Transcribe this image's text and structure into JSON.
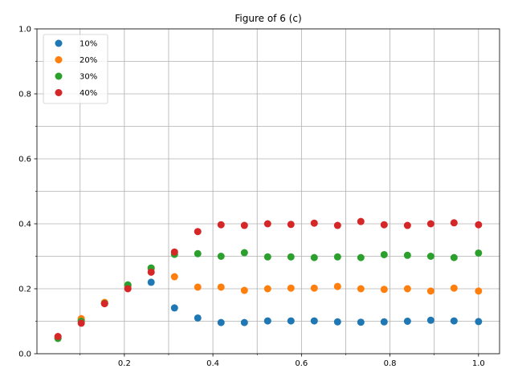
{
  "chart_data": {
    "type": "scatter",
    "title": "Figure of 6 (c)",
    "xlabel": "",
    "ylabel": "",
    "xlim": [
      0.0025,
      1.0475
    ],
    "ylim": [
      0,
      1
    ],
    "x_major_ticks": [
      0.2,
      0.4,
      0.6,
      0.8,
      1.0
    ],
    "x_major_tick_labels": [
      "0.2",
      "0.4",
      "0.6",
      "0.8",
      "1.0"
    ],
    "x_minor_ticks": [
      0.1,
      0.3,
      0.5,
      0.7,
      0.9
    ],
    "y_major_ticks": [
      0.0,
      0.2,
      0.4,
      0.6,
      0.8,
      1.0
    ],
    "y_major_tick_labels": [
      "0.0",
      "0.2",
      "0.4",
      "0.6",
      "0.8",
      "1.0"
    ],
    "y_minor_ticks": [
      0.1,
      0.3,
      0.5,
      0.7,
      0.9
    ],
    "grid": "major and minor",
    "legend_position": "top-left",
    "x": [
      0.05,
      0.1026,
      0.1553,
      0.2079,
      0.2605,
      0.3132,
      0.3658,
      0.4184,
      0.4711,
      0.5237,
      0.5763,
      0.6289,
      0.6816,
      0.7342,
      0.7868,
      0.8395,
      0.8921,
      0.9447,
      1.0
    ],
    "series": [
      {
        "name": "10%",
        "color": "#1f77b4",
        "values": [
          0.048,
          0.104,
          0.155,
          0.21,
          0.22,
          0.141,
          0.11,
          0.096,
          0.096,
          0.101,
          0.101,
          0.101,
          0.098,
          0.097,
          0.098,
          0.1,
          0.103,
          0.101,
          0.099
        ]
      },
      {
        "name": "20%",
        "color": "#ff7f0e",
        "values": [
          0.052,
          0.108,
          0.158,
          0.206,
          0.262,
          0.237,
          0.205,
          0.205,
          0.195,
          0.2,
          0.202,
          0.202,
          0.207,
          0.2,
          0.198,
          0.2,
          0.193,
          0.202,
          0.193
        ]
      },
      {
        "name": "30%",
        "color": "#2ca02c",
        "values": [
          0.047,
          0.1,
          0.155,
          0.212,
          0.264,
          0.306,
          0.308,
          0.3,
          0.311,
          0.298,
          0.298,
          0.296,
          0.298,
          0.296,
          0.305,
          0.303,
          0.3,
          0.296,
          0.31
        ]
      },
      {
        "name": "40%",
        "color": "#d62728",
        "values": [
          0.053,
          0.094,
          0.154,
          0.2,
          0.251,
          0.313,
          0.376,
          0.397,
          0.395,
          0.4,
          0.398,
          0.402,
          0.395,
          0.407,
          0.397,
          0.395,
          0.4,
          0.403,
          0.397
        ]
      }
    ]
  }
}
